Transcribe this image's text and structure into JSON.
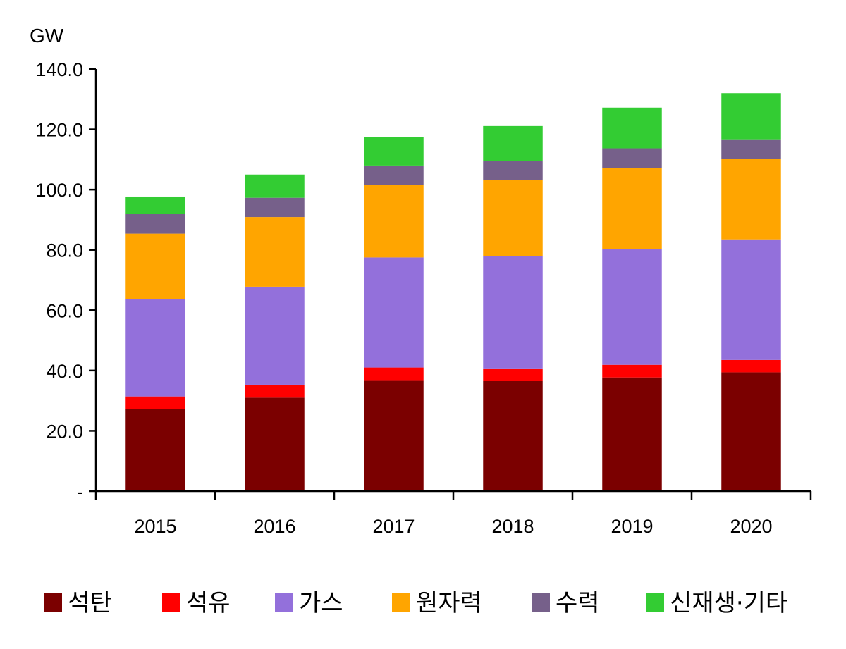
{
  "chart_data": {
    "type": "bar",
    "stacked": true,
    "ylabel": "GW",
    "ylim": [
      0,
      140
    ],
    "yticks": [
      0,
      20,
      40,
      60,
      80,
      100,
      120,
      140
    ],
    "ytick_labels": [
      "-",
      "20.0",
      "40.0",
      "60.0",
      "80.0",
      "100.0",
      "120.0",
      "140.0"
    ],
    "categories": [
      "2015",
      "2016",
      "2017",
      "2018",
      "2019",
      "2020"
    ],
    "legend_position": "bottom",
    "grid": false,
    "series": [
      {
        "name": "석탄",
        "color": "#7B0000",
        "values": [
          27.3,
          31.0,
          36.8,
          36.5,
          37.7,
          39.4
        ]
      },
      {
        "name": "석유",
        "color": "#FF0000",
        "values": [
          4.1,
          4.3,
          4.2,
          4.2,
          4.2,
          4.1
        ]
      },
      {
        "name": "가스",
        "color": "#9370DB",
        "values": [
          32.3,
          32.5,
          36.5,
          37.3,
          38.5,
          40.0
        ]
      },
      {
        "name": "원자력",
        "color": "#FFA500",
        "values": [
          21.7,
          23.1,
          24.0,
          25.1,
          26.8,
          26.7
        ]
      },
      {
        "name": "수력",
        "color": "#76608A",
        "values": [
          6.5,
          6.4,
          6.5,
          6.5,
          6.5,
          6.5
        ]
      },
      {
        "name": "신재생·기타",
        "color": "#33CC33",
        "values": [
          5.8,
          7.7,
          9.5,
          11.5,
          13.5,
          15.3
        ]
      }
    ]
  }
}
